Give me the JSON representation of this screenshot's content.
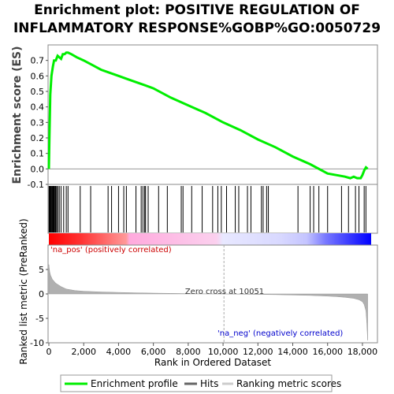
{
  "title": {
    "line1": "Enrichment plot: POSITIVE REGULATION OF",
    "line2": "INFLAMMATORY RESPONSE%GOBP%GO:0050729"
  },
  "chart_data": {
    "type": "line",
    "colors": {
      "enrichment_line": "#00ee00",
      "positive_band": "#ff0000",
      "negative_band": "#0000ff",
      "metric_fill": "#b0b0b0",
      "positive_label": "#cc0000",
      "negative_label": "#0000cc"
    },
    "top_panel": {
      "ylabel": "Enrichment score (ES)",
      "ylim": [
        -0.1,
        0.8
      ],
      "yticks": [
        "-0.1",
        "0.0",
        "0.1",
        "0.2",
        "0.3",
        "0.4",
        "0.5",
        "0.6",
        "0.7"
      ],
      "series": [
        {
          "name": "Enrichment profile",
          "x": [
            0,
            30,
            80,
            150,
            230,
            300,
            400,
            500,
            600,
            700,
            800,
            900,
            1000,
            1100,
            1300,
            1600,
            2000,
            2500,
            3000,
            3500,
            4000,
            4500,
            5000,
            5500,
            6000,
            7000,
            8000,
            9000,
            10000,
            11000,
            12000,
            13000,
            14000,
            15000,
            16000,
            16500,
            17000,
            17300,
            17500,
            17700,
            17900,
            18000,
            18100,
            18200,
            18300
          ],
          "y": [
            0.0,
            0.2,
            0.48,
            0.6,
            0.66,
            0.7,
            0.7,
            0.73,
            0.72,
            0.71,
            0.74,
            0.74,
            0.75,
            0.75,
            0.74,
            0.72,
            0.7,
            0.67,
            0.64,
            0.62,
            0.6,
            0.58,
            0.56,
            0.54,
            0.52,
            0.46,
            0.41,
            0.36,
            0.3,
            0.25,
            0.19,
            0.14,
            0.08,
            0.03,
            -0.03,
            -0.04,
            -0.05,
            -0.06,
            -0.05,
            -0.06,
            -0.06,
            -0.04,
            -0.01,
            0.01,
            0.0
          ]
        }
      ],
      "hits": [
        10,
        40,
        70,
        110,
        150,
        190,
        230,
        270,
        310,
        360,
        400,
        450,
        520,
        600,
        700,
        850,
        1000,
        1100,
        1800,
        2400,
        3400,
        3600,
        4000,
        4300,
        4450,
        5000,
        5300,
        5400,
        5500,
        5550,
        5700,
        6300,
        6800,
        7600,
        7700,
        8200,
        8800,
        9400,
        9700,
        9900,
        10200,
        10700,
        10900,
        11400,
        11600,
        12200,
        12300,
        12500,
        12600,
        14300,
        15000,
        15200,
        15500,
        16000,
        16800,
        17200,
        17600,
        17800,
        18100,
        18200
      ]
    },
    "bottom_panel": {
      "ylabel": "Ranked list metric (PreRanked)",
      "xlabel": "Rank in Ordered Dataset",
      "ylim": [
        -10,
        10
      ],
      "yticks": [
        "-10",
        "-5",
        "0",
        "5"
      ],
      "xlim": [
        0,
        18500
      ],
      "xticks": [
        "0",
        "2,000",
        "4,000",
        "6,000",
        "8,000",
        "10,000",
        "12,000",
        "14,000",
        "16,000",
        "18,000"
      ],
      "zero_cross": 10051,
      "zero_cross_label": "Zero cross at 10051",
      "pos_label": "'na_pos' (positively correlated)",
      "neg_label": "'na_neg' (negatively correlated)",
      "metric_curve": {
        "x": [
          0,
          50,
          100,
          200,
          400,
          700,
          1000,
          1500,
          2000,
          3000,
          4000,
          5000,
          6000,
          7000,
          8000,
          9000,
          10051,
          11000,
          12000,
          13000,
          14000,
          15000,
          16000,
          16500,
          17000,
          17500,
          17800,
          18000,
          18100,
          18200,
          18250,
          18300
        ],
        "y": [
          6.0,
          4.5,
          3.8,
          3.0,
          2.2,
          1.5,
          1.0,
          0.7,
          0.55,
          0.4,
          0.3,
          0.22,
          0.16,
          0.11,
          0.07,
          0.03,
          0.0,
          -0.05,
          -0.1,
          -0.15,
          -0.22,
          -0.3,
          -0.45,
          -0.55,
          -0.7,
          -0.9,
          -1.2,
          -1.6,
          -2.2,
          -3.5,
          -6.0,
          -9.5
        ]
      }
    },
    "legend": {
      "position": "bottom",
      "items": [
        "Enrichment profile",
        "Hits",
        "Ranking metric scores"
      ]
    }
  }
}
